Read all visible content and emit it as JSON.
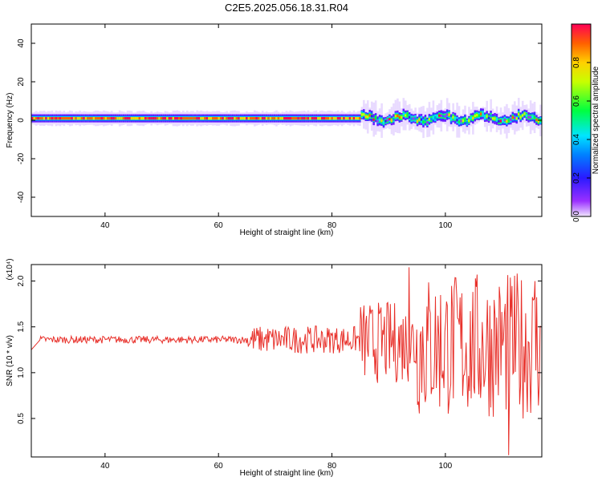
{
  "title": "C2E5.2025.056.18.31.R04",
  "chart_data": [
    {
      "type": "heatmap",
      "title": "C2E5.2025.056.18.31.R04",
      "xlabel": "Height of straight line (km)",
      "ylabel": "Frequency (Hz)",
      "xlim": [
        27,
        117
      ],
      "ylim": [
        -50,
        50
      ],
      "x_ticks": [
        40,
        60,
        80,
        100
      ],
      "y_ticks": [
        40,
        20,
        0,
        -20,
        -40
      ],
      "tick_labels": {
        "x": [
          "40",
          "60",
          "80",
          "100"
        ],
        "y": [
          "40",
          "20",
          "0",
          "-20",
          "-40"
        ]
      },
      "colorbar": {
        "label": "Normalized spectral amplitude",
        "range": [
          0,
          1
        ],
        "ticks": [
          "0.0",
          "0.2",
          "0.4",
          "0.6",
          "0.8"
        ],
        "colormap": "rainbow (violet → blue → cyan → green → yellow → red)"
      },
      "grid": false,
      "description_band": {
        "center_freq_hz": 1,
        "stable_until_km": 82,
        "noisy_from_km": 85
      }
    },
    {
      "type": "line",
      "xlabel": "Height of straight line (km)",
      "ylabel": "SNR (10 * v/v)",
      "y_scale_label": "(x10⁴)",
      "xlim": [
        27,
        117
      ],
      "ylim": [
        0.08,
        2.18
      ],
      "x_ticks": [
        40,
        60,
        80,
        100
      ],
      "y_ticks": [
        0.5,
        1.0,
        1.5,
        2.0
      ],
      "tick_labels": {
        "x": [
          "40",
          "60",
          "80",
          "100"
        ],
        "y": [
          "0.5",
          "1.0",
          "1.5",
          "2.0"
        ]
      },
      "series": [
        {
          "color": "#e8302a",
          "segments": [
            {
              "x_from": 27,
              "x_to": 65,
              "mean": 1.36,
              "amplitude": 0.04
            },
            {
              "x_from": 65,
              "x_to": 85,
              "mean": 1.36,
              "amplitude": 0.15
            },
            {
              "x_from": 85,
              "x_to": 95,
              "mean": 1.33,
              "amplitude": 0.45
            },
            {
              "x_from": 95,
              "x_to": 117,
              "mean": 1.3,
              "amplitude": 0.8
            }
          ],
          "peaks": [
            {
              "x": 93.6,
              "y": 2.15
            },
            {
              "x": 115.8,
              "y": 2.0
            },
            {
              "x": 111.2,
              "y": 0.1
            }
          ]
        }
      ]
    }
  ]
}
